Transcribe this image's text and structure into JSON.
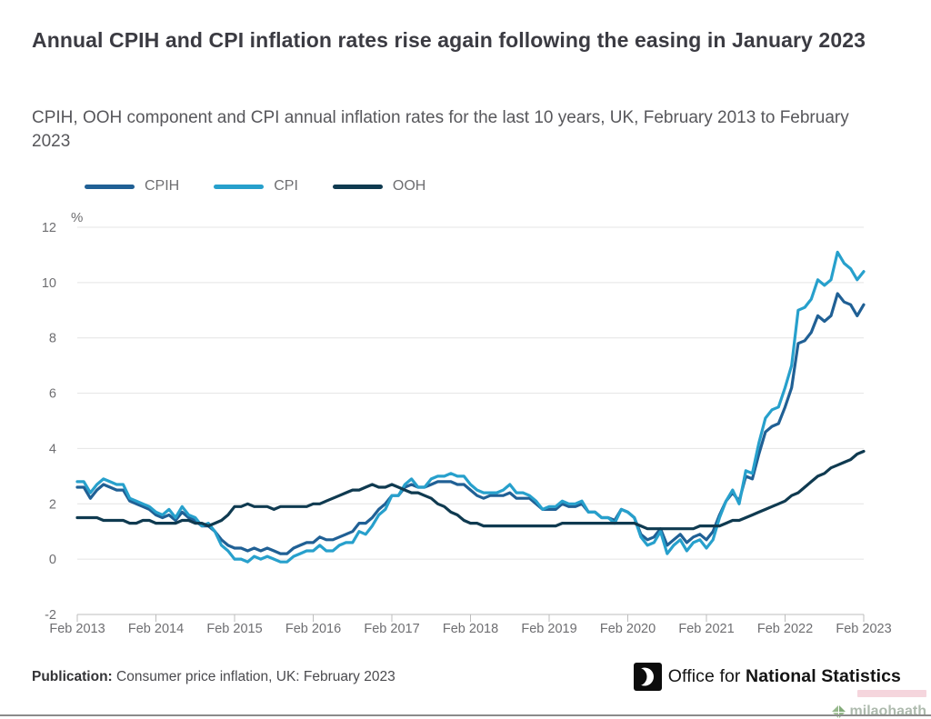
{
  "header": {
    "title": "Annual CPIH and CPI inflation rates rise again following the easing in January 2023",
    "subtitle": "CPIH, OOH component and CPI annual inflation rates for the last 10 years, UK, February 2013 to February 2023"
  },
  "chart_data": {
    "type": "line",
    "title": "Annual CPIH and CPI inflation rates rise again following the easing in January 2023",
    "xlabel": "",
    "ylabel": "%",
    "unit_label": "%",
    "ylim": [
      -2,
      12
    ],
    "y_ticks": [
      12,
      10,
      8,
      6,
      4,
      2,
      0,
      -2
    ],
    "x_frequency": "monthly",
    "x_range": [
      "Feb 2013",
      "Feb 2023"
    ],
    "x_tick_labels": [
      "Feb 2013",
      "Feb 2014",
      "Feb 2015",
      "Feb 2016",
      "Feb 2017",
      "Feb 2018",
      "Feb 2019",
      "Feb 2020",
      "Feb 2021",
      "Feb 2022",
      "Feb 2023"
    ],
    "grid": true,
    "legend_position": "top-left",
    "series": [
      {
        "name": "CPIH",
        "color": "#206095",
        "values": [
          2.6,
          2.6,
          2.2,
          2.5,
          2.7,
          2.6,
          2.5,
          2.5,
          2.1,
          2.0,
          1.9,
          1.8,
          1.6,
          1.5,
          1.6,
          1.4,
          1.7,
          1.5,
          1.4,
          1.2,
          1.2,
          1.0,
          0.7,
          0.5,
          0.4,
          0.4,
          0.3,
          0.4,
          0.3,
          0.4,
          0.3,
          0.2,
          0.2,
          0.4,
          0.5,
          0.6,
          0.6,
          0.8,
          0.7,
          0.7,
          0.8,
          0.9,
          1.0,
          1.3,
          1.3,
          1.5,
          1.8,
          2.0,
          2.3,
          2.3,
          2.6,
          2.7,
          2.6,
          2.6,
          2.7,
          2.8,
          2.8,
          2.8,
          2.7,
          2.7,
          2.5,
          2.3,
          2.2,
          2.3,
          2.3,
          2.3,
          2.4,
          2.2,
          2.2,
          2.2,
          2.0,
          1.8,
          1.8,
          1.8,
          2.0,
          1.9,
          1.9,
          2.0,
          1.7,
          1.7,
          1.5,
          1.5,
          1.4,
          1.8,
          1.7,
          1.5,
          0.9,
          0.7,
          0.8,
          1.1,
          0.5,
          0.7,
          0.9,
          0.6,
          0.8,
          0.9,
          0.7,
          1.0,
          1.6,
          2.1,
          2.4,
          2.1,
          3.0,
          2.9,
          3.8,
          4.6,
          4.8,
          4.9,
          5.5,
          6.2,
          7.8,
          7.9,
          8.2,
          8.8,
          8.6,
          8.8,
          9.6,
          9.3,
          9.2,
          8.8,
          9.2
        ]
      },
      {
        "name": "CPI",
        "color": "#27A0CC",
        "values": [
          2.8,
          2.8,
          2.4,
          2.7,
          2.9,
          2.8,
          2.7,
          2.7,
          2.2,
          2.1,
          2.0,
          1.9,
          1.7,
          1.6,
          1.8,
          1.5,
          1.9,
          1.6,
          1.5,
          1.2,
          1.3,
          1.0,
          0.5,
          0.3,
          0.0,
          0.0,
          -0.1,
          0.1,
          0.0,
          0.1,
          0.0,
          -0.1,
          -0.1,
          0.1,
          0.2,
          0.3,
          0.3,
          0.5,
          0.3,
          0.3,
          0.5,
          0.6,
          0.6,
          1.0,
          0.9,
          1.2,
          1.6,
          1.8,
          2.3,
          2.3,
          2.7,
          2.9,
          2.6,
          2.6,
          2.9,
          3.0,
          3.0,
          3.1,
          3.0,
          3.0,
          2.7,
          2.5,
          2.4,
          2.4,
          2.4,
          2.5,
          2.7,
          2.4,
          2.4,
          2.3,
          2.1,
          1.8,
          1.9,
          1.9,
          2.1,
          2.0,
          2.0,
          2.1,
          1.7,
          1.7,
          1.5,
          1.5,
          1.3,
          1.8,
          1.7,
          1.5,
          0.8,
          0.5,
          0.6,
          1.0,
          0.2,
          0.5,
          0.7,
          0.3,
          0.6,
          0.7,
          0.4,
          0.7,
          1.5,
          2.1,
          2.5,
          2.0,
          3.2,
          3.1,
          4.2,
          5.1,
          5.4,
          5.5,
          6.2,
          7.0,
          9.0,
          9.1,
          9.4,
          10.1,
          9.9,
          10.1,
          11.1,
          10.7,
          10.5,
          10.1,
          10.4
        ]
      },
      {
        "name": "OOH",
        "color": "#0f3a50",
        "values": [
          1.5,
          1.5,
          1.5,
          1.5,
          1.4,
          1.4,
          1.4,
          1.4,
          1.3,
          1.3,
          1.4,
          1.4,
          1.3,
          1.3,
          1.3,
          1.3,
          1.4,
          1.4,
          1.3,
          1.3,
          1.2,
          1.3,
          1.4,
          1.6,
          1.9,
          1.9,
          2.0,
          1.9,
          1.9,
          1.9,
          1.8,
          1.9,
          1.9,
          1.9,
          1.9,
          1.9,
          2.0,
          2.0,
          2.1,
          2.2,
          2.3,
          2.4,
          2.5,
          2.5,
          2.6,
          2.7,
          2.6,
          2.6,
          2.7,
          2.6,
          2.5,
          2.4,
          2.4,
          2.3,
          2.2,
          2.0,
          1.9,
          1.7,
          1.6,
          1.4,
          1.3,
          1.3,
          1.2,
          1.2,
          1.2,
          1.2,
          1.2,
          1.2,
          1.2,
          1.2,
          1.2,
          1.2,
          1.2,
          1.2,
          1.3,
          1.3,
          1.3,
          1.3,
          1.3,
          1.3,
          1.3,
          1.3,
          1.3,
          1.3,
          1.3,
          1.3,
          1.2,
          1.1,
          1.1,
          1.1,
          1.1,
          1.1,
          1.1,
          1.1,
          1.1,
          1.2,
          1.2,
          1.2,
          1.2,
          1.3,
          1.4,
          1.4,
          1.5,
          1.6,
          1.7,
          1.8,
          1.9,
          2.0,
          2.1,
          2.3,
          2.4,
          2.6,
          2.8,
          3.0,
          3.1,
          3.3,
          3.4,
          3.5,
          3.6,
          3.8,
          3.9
        ]
      }
    ]
  },
  "footer": {
    "publication_label": "Publication:",
    "publication_text": "Consumer price inflation, UK: February 2023",
    "ons_text_regular": "Office for ",
    "ons_text_bold": "National Statistics"
  },
  "watermark": {
    "text": "milaohaath"
  }
}
